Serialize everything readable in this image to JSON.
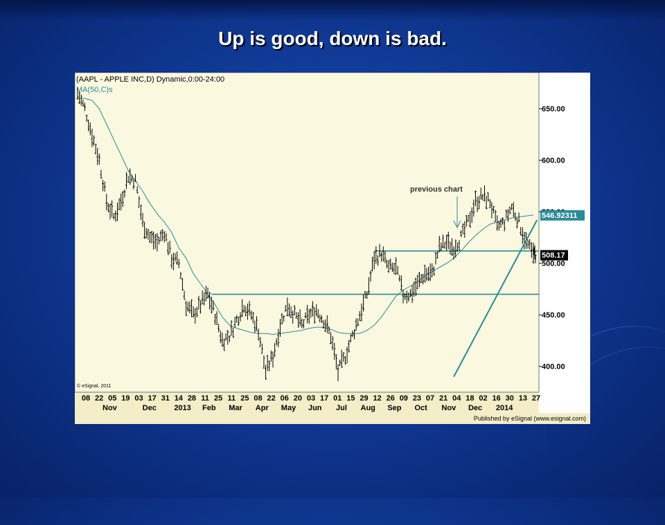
{
  "slide": {
    "title": "Up is good, down is bad."
  },
  "colors": {
    "chart_bg": "#faf8df",
    "price_bars": "#000000",
    "ma_line": "#2a8a9a",
    "support_line": "#2a8a9a",
    "trend_line": "#2a8a9a"
  },
  "chart_data": {
    "type": "line",
    "subtype": "ohlc-bar",
    "title": "(AAPL - APPLE INC,D) Dynamic,0:00-24:00",
    "indicator_label": "MA(50,C)s",
    "yticks": [
      650,
      600,
      550,
      500,
      450,
      400
    ],
    "ylim": [
      375,
      685
    ],
    "y_labels": [
      "650.00",
      "600.00",
      "550.00",
      "500.00",
      "450.00",
      "400.00"
    ],
    "last_ma_value": "546.92311",
    "last_price": "508.17",
    "annotation": "previous chart",
    "watermark": "© eSignal, 2011",
    "publisher": "Published by eSignal (www.esignal.com)",
    "x_day_labels": [
      "08",
      "22",
      "05",
      "19",
      "03",
      "17",
      "31",
      "14",
      "28",
      "11",
      "25",
      "11",
      "25",
      "08",
      "22",
      "06",
      "20",
      "03",
      "17",
      "01",
      "15",
      "29",
      "12",
      "26",
      "09",
      "23",
      "07",
      "21",
      "04",
      "18",
      "02",
      "16",
      "30",
      "13",
      "27"
    ],
    "x_month_labels": [
      "Nov",
      "Dec",
      "2013",
      "Feb",
      "Mar",
      "Apr",
      "May",
      "Jun",
      "Jul",
      "Aug",
      "Sep",
      "Oct",
      "Nov",
      "Dec",
      "2014"
    ],
    "horizontal_lines": [
      470,
      512
    ],
    "trend_line": {
      "from_week": 52,
      "from_price": 390,
      "to_week": 63.5,
      "to_price": 542
    },
    "series": [
      {
        "values": [
          665,
          650,
          625,
          600,
          560,
          545,
          560,
          585,
          580,
          540,
          525,
          520,
          530,
          505,
          500,
          460,
          450,
          460,
          470,
          450,
          425,
          430,
          445,
          460,
          450,
          435,
          395,
          410,
          440,
          460,
          450,
          440,
          450,
          455,
          445,
          430,
          395,
          410,
          430,
          450,
          470,
          505,
          510,
          495,
          495,
          470,
          470,
          480,
          490,
          490,
          515,
          520,
          515,
          525,
          540,
          560,
          565,
          560,
          535,
          540,
          555,
          540,
          520,
          508
        ],
        "ma_values": [
          660,
          660,
          658,
          650,
          635,
          620,
          605,
          590,
          580,
          570,
          558,
          548,
          540,
          530,
          515,
          505,
          490,
          480,
          470,
          460,
          448,
          440,
          437,
          435,
          433,
          432,
          432,
          431,
          432,
          433,
          434,
          435,
          437,
          438,
          438,
          436,
          433,
          432,
          432,
          432,
          435,
          440,
          448,
          458,
          468,
          474,
          478,
          482,
          488,
          492,
          496,
          500,
          505,
          512,
          520,
          527,
          533,
          538,
          540,
          542,
          544,
          545,
          546,
          546.92
        ]
      }
    ]
  }
}
